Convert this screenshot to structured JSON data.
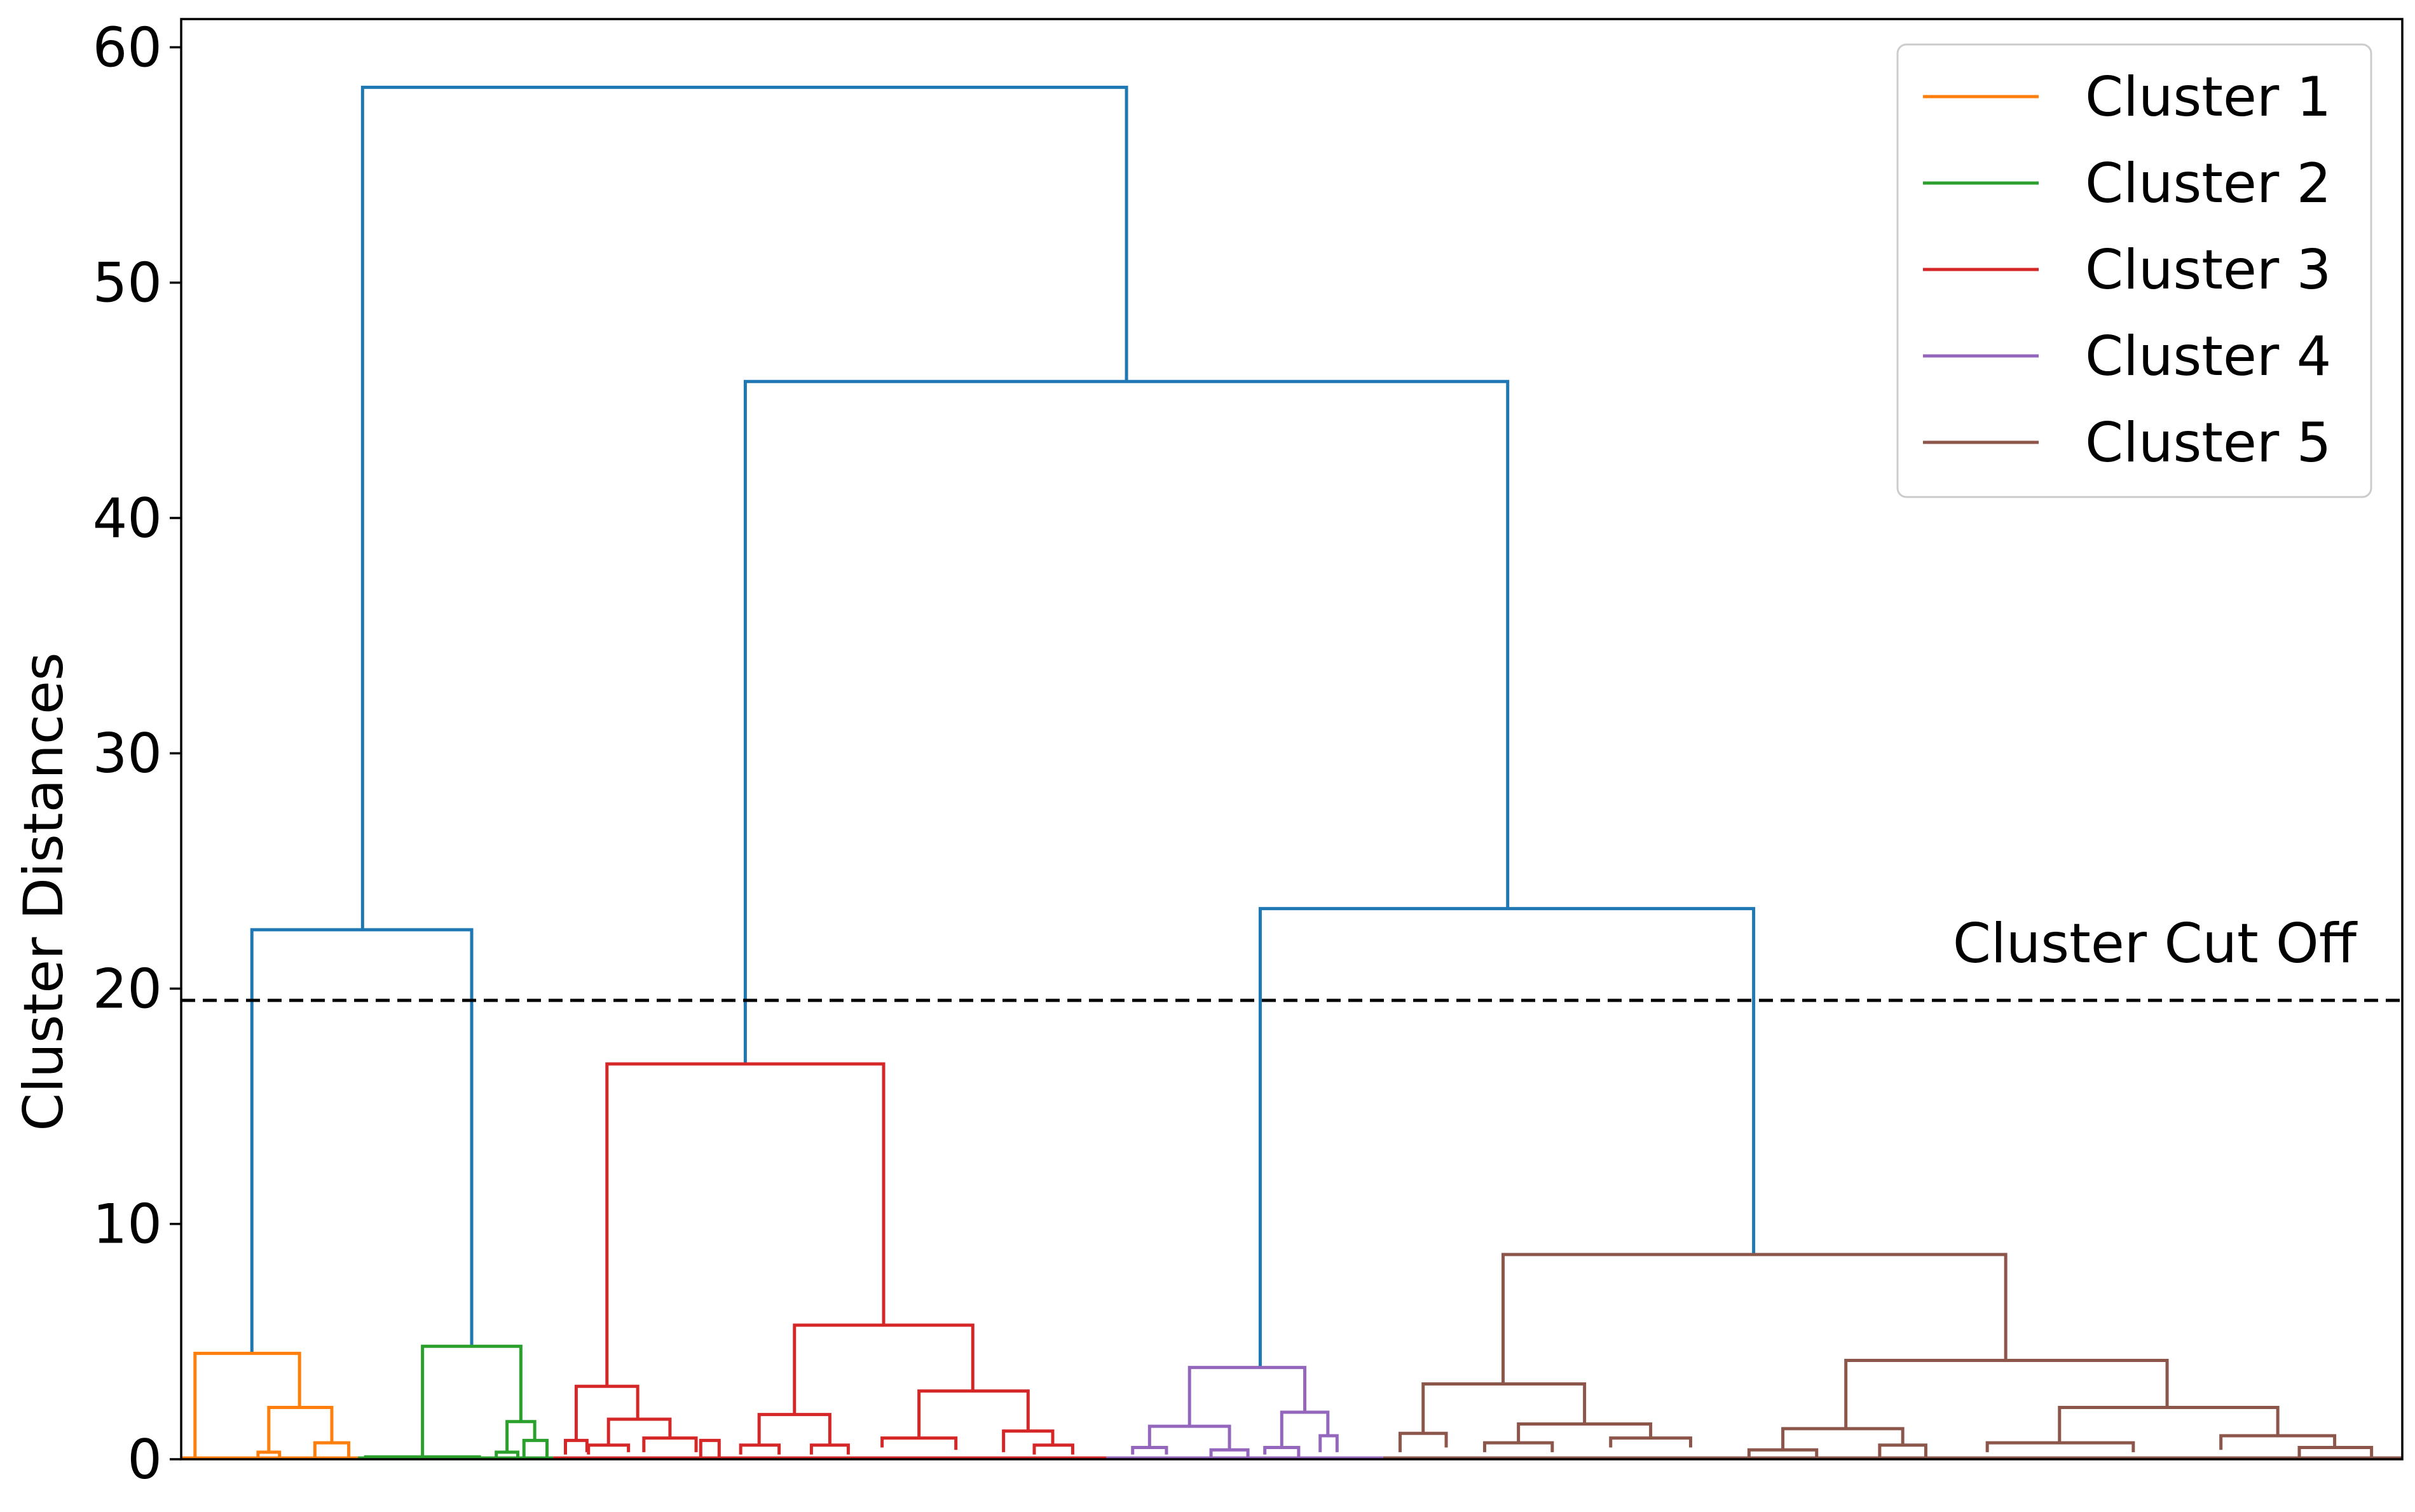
{
  "chart_data": {
    "type": "dendrogram",
    "ylabel": "Cluster Distances",
    "xlabel": "",
    "title": "",
    "ylim": [
      0,
      61.2
    ],
    "yticks": [
      "0",
      "10",
      "20",
      "30",
      "40",
      "50",
      "60"
    ],
    "ytick_values": [
      0,
      10,
      20,
      30,
      40,
      50,
      60
    ],
    "xticks_visible": false,
    "legend_position": "top-right",
    "grid": false,
    "cutoff": {
      "value": 19.5,
      "label": "Cluster Cut Off",
      "style": "dashed",
      "color": "#000000"
    },
    "link_color_above_cut": "#1f77b4",
    "series": [
      {
        "name": "Cluster 1",
        "color": "#ff7f0e"
      },
      {
        "name": "Cluster 2",
        "color": "#2ca02c"
      },
      {
        "name": "Cluster 3",
        "color": "#d62728"
      },
      {
        "name": "Cluster 4",
        "color": "#9467bd"
      },
      {
        "name": "Cluster 5",
        "color": "#8c564b"
      }
    ],
    "x_range": [
      0,
      1445
    ],
    "links": [
      {
        "x": [
          118,
          615
        ],
        "h": 58.3,
        "children": [
          22.5,
          45.8
        ],
        "color": "#1f77b4"
      },
      {
        "x": [
          46,
          189
        ],
        "h": 22.5,
        "children": [
          4.5,
          4.8
        ],
        "color": "#1f77b4"
      },
      {
        "x": [
          367,
          863
        ],
        "h": 45.8,
        "children": [
          16.8,
          23.4
        ],
        "color": "#1f77b4"
      },
      {
        "x": [
          702,
          1023
        ],
        "h": 23.4,
        "children": [
          3.9,
          8.7
        ],
        "color": "#1f77b4"
      },
      {
        "x": [
          9,
          77
        ],
        "h": 4.5,
        "children": [
          0,
          2.2
        ],
        "color": "#ff7f0e"
      },
      {
        "x": [
          57,
          98
        ],
        "h": 2.2,
        "children": [
          0.3,
          0.7
        ],
        "color": "#ff7f0e"
      },
      {
        "x": [
          87,
          109
        ],
        "h": 0.7,
        "children": [
          0.1,
          0
        ],
        "color": "#ff7f0e"
      },
      {
        "x": [
          50,
          64
        ],
        "h": 0.3,
        "children": [
          0,
          0
        ],
        "color": "#ff7f0e"
      },
      {
        "x": [
          157,
          221
        ],
        "h": 4.8,
        "children": [
          0,
          1.6
        ],
        "color": "#2ca02c"
      },
      {
        "x": [
          212,
          230
        ],
        "h": 1.6,
        "children": [
          0.3,
          0.8
        ],
        "color": "#2ca02c"
      },
      {
        "x": [
          223,
          238
        ],
        "h": 0.8,
        "children": [
          0,
          0
        ],
        "color": "#2ca02c"
      },
      {
        "x": [
          120,
          194
        ],
        "h": 0.1,
        "children": [
          0,
          0
        ],
        "color": "#2ca02c"
      },
      {
        "x": [
          205,
          219
        ],
        "h": 0.3,
        "children": [
          0,
          0
        ],
        "color": "#2ca02c"
      },
      {
        "x": [
          277,
          457
        ],
        "h": 16.8,
        "children": [
          3.1,
          5.7
        ],
        "color": "#d62728"
      },
      {
        "x": [
          257,
          297
        ],
        "h": 3.1,
        "children": [
          0.8,
          1.7
        ],
        "color": "#d62728"
      },
      {
        "x": [
          250,
          264
        ],
        "h": 0.8,
        "children": [
          0.2,
          0.3
        ],
        "color": "#d62728"
      },
      {
        "x": [
          278,
          318
        ],
        "h": 1.7,
        "children": [
          0.6,
          0.9
        ],
        "color": "#d62728"
      },
      {
        "x": [
          265,
          291
        ],
        "h": 0.6,
        "children": [
          0.2,
          0.3
        ],
        "color": "#d62728"
      },
      {
        "x": [
          301,
          335
        ],
        "h": 0.9,
        "children": [
          0.3,
          0.3
        ],
        "color": "#d62728"
      },
      {
        "x": [
          399,
          515
        ],
        "h": 5.7,
        "children": [
          1.9,
          2.9
        ],
        "color": "#d62728"
      },
      {
        "x": [
          376,
          422
        ],
        "h": 1.9,
        "children": [
          0.6,
          0.6
        ],
        "color": "#d62728"
      },
      {
        "x": [
          364,
          389
        ],
        "h": 0.6,
        "children": [
          0.2,
          0.2
        ],
        "color": "#d62728"
      },
      {
        "x": [
          410,
          434
        ],
        "h": 0.6,
        "children": [
          0.2,
          0.2
        ],
        "color": "#d62728"
      },
      {
        "x": [
          480,
          551
        ],
        "h": 2.9,
        "children": [
          0.9,
          1.2
        ],
        "color": "#d62728"
      },
      {
        "x": [
          456,
          504
        ],
        "h": 0.9,
        "children": [
          0.5,
          0.4
        ],
        "color": "#d62728"
      },
      {
        "x": [
          535,
          567
        ],
        "h": 1.2,
        "children": [
          0.3,
          0.6
        ],
        "color": "#d62728"
      },
      {
        "x": [
          555,
          580
        ],
        "h": 0.6,
        "children": [
          0.2,
          0.2
        ],
        "color": "#d62728"
      },
      {
        "x": [
          338,
          350
        ],
        "h": 0.8,
        "children": [
          0,
          0
        ],
        "color": "#d62728"
      },
      {
        "x": [
          656,
          731
        ],
        "h": 3.9,
        "children": [
          1.4,
          2.0
        ],
        "color": "#9467bd"
      },
      {
        "x": [
          630,
          682
        ],
        "h": 1.4,
        "children": [
          0.5,
          0.4
        ],
        "color": "#9467bd"
      },
      {
        "x": [
          619,
          641
        ],
        "h": 0.5,
        "children": [
          0.2,
          0.2
        ],
        "color": "#9467bd"
      },
      {
        "x": [
          670,
          694
        ],
        "h": 0.4,
        "children": [
          0.1,
          0.1
        ],
        "color": "#9467bd"
      },
      {
        "x": [
          716,
          746
        ],
        "h": 2.0,
        "children": [
          0.5,
          1.0
        ],
        "color": "#9467bd"
      },
      {
        "x": [
          705,
          727
        ],
        "h": 0.5,
        "children": [
          0.2,
          0.1
        ],
        "color": "#9467bd"
      },
      {
        "x": [
          741,
          752
        ],
        "h": 1.0,
        "children": [
          0.3,
          0.3
        ],
        "color": "#9467bd"
      },
      {
        "x": [
          860,
          1187
        ],
        "h": 8.7,
        "children": [
          3.2,
          4.2
        ],
        "color": "#8c564b"
      },
      {
        "x": [
          808,
          913
        ],
        "h": 3.2,
        "children": [
          1.1,
          1.5
        ],
        "color": "#8c564b"
      },
      {
        "x": [
          793,
          823
        ],
        "h": 1.1,
        "children": [
          0.3,
          0.5
        ],
        "color": "#8c564b"
      },
      {
        "x": [
          870,
          956
        ],
        "h": 1.5,
        "children": [
          0.7,
          0.9
        ],
        "color": "#8c564b"
      },
      {
        "x": [
          848,
          892
        ],
        "h": 0.7,
        "children": [
          0.3,
          0.3
        ],
        "color": "#8c564b"
      },
      {
        "x": [
          930,
          982
        ],
        "h": 0.9,
        "children": [
          0.5,
          0.5
        ],
        "color": "#8c564b"
      },
      {
        "x": [
          1083,
          1292
        ],
        "h": 4.2,
        "children": [
          1.3,
          2.2
        ],
        "color": "#8c564b"
      },
      {
        "x": [
          1042,
          1120
        ],
        "h": 1.3,
        "children": [
          0.4,
          0.6
        ],
        "color": "#8c564b"
      },
      {
        "x": [
          1020,
          1064
        ],
        "h": 0.4,
        "children": [
          0.1,
          0.1
        ],
        "color": "#8c564b"
      },
      {
        "x": [
          1105,
          1135
        ],
        "h": 0.6,
        "children": [
          0.1,
          0.1
        ],
        "color": "#8c564b"
      },
      {
        "x": [
          1222,
          1364
        ],
        "h": 2.2,
        "children": [
          0.7,
          1.0
        ],
        "color": "#8c564b"
      },
      {
        "x": [
          1175,
          1270
        ],
        "h": 0.7,
        "children": [
          0.3,
          0.3
        ],
        "color": "#8c564b"
      },
      {
        "x": [
          1327,
          1401
        ],
        "h": 1.0,
        "children": [
          0.4,
          0.5
        ],
        "color": "#8c564b"
      },
      {
        "x": [
          1378,
          1425
        ],
        "h": 0.5,
        "children": [
          0.1,
          0.1
        ],
        "color": "#8c564b"
      }
    ],
    "leaf_range": [
      {
        "x": [
          0,
          115
        ],
        "color": "#ff7f0e"
      },
      {
        "x": [
          115,
          242
        ],
        "color": "#2ca02c"
      },
      {
        "x": [
          242,
          602
        ],
        "color": "#d62728"
      },
      {
        "x": [
          602,
          782
        ],
        "color": "#9467bd"
      },
      {
        "x": [
          782,
          1445
        ],
        "color": "#8c564b"
      }
    ]
  }
}
